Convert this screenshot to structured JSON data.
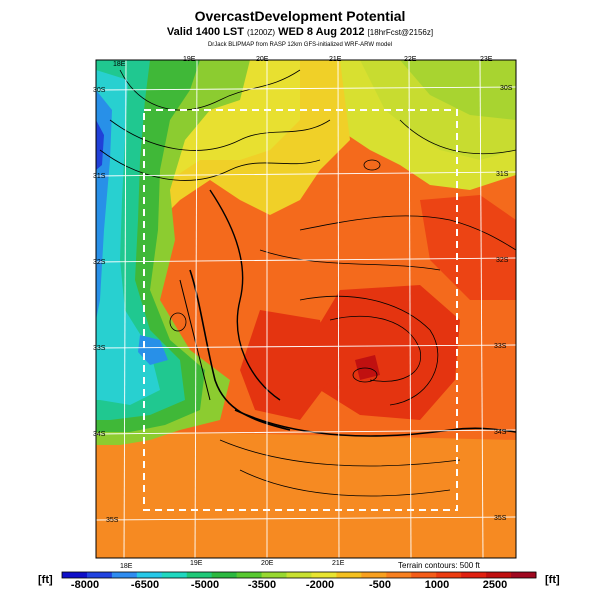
{
  "header": {
    "title": "OvercastDevelopment Potential",
    "valid_prefix": "Valid 1400 LST",
    "valid_code": "(1200Z)",
    "valid_day": "WED 8 Aug 2012",
    "forecast": "[18hrFcst@2156z]",
    "credit": "DrJack BLIPMAP from RASP 12km GFS-initialized WRF-ARW model"
  },
  "map": {
    "lon_labels_top": [
      "18E",
      "19E",
      "20E",
      "21E",
      "22E",
      "23E"
    ],
    "lon_labels_bottom": [
      "18E",
      "19E",
      "20E",
      "21E"
    ],
    "lat_labels_left": [
      "30S",
      "31S",
      "32S",
      "33S",
      "34S",
      "35S"
    ],
    "lat_labels_right": [
      "30S",
      "31S",
      "32S",
      "33S",
      "34S",
      "35S"
    ],
    "terrain_note": "Terrain contours: 500 ft"
  },
  "colorbar": {
    "unit_left": "[ft]",
    "unit_right": "[ft]",
    "tick_labels": [
      "-8000",
      "-6500",
      "-5000",
      "-3500",
      "-2000",
      "-500",
      "1000",
      "2500"
    ],
    "colors": [
      "#1010c8",
      "#2244e0",
      "#2f8cf0",
      "#28c8e8",
      "#20d8c0",
      "#20c878",
      "#2cb840",
      "#58c830",
      "#98d830",
      "#c8e030",
      "#e8e430",
      "#f4c020",
      "#f8a020",
      "#f88020",
      "#f45c18",
      "#ec3c10",
      "#e02010",
      "#c01010",
      "#a00820"
    ]
  }
}
